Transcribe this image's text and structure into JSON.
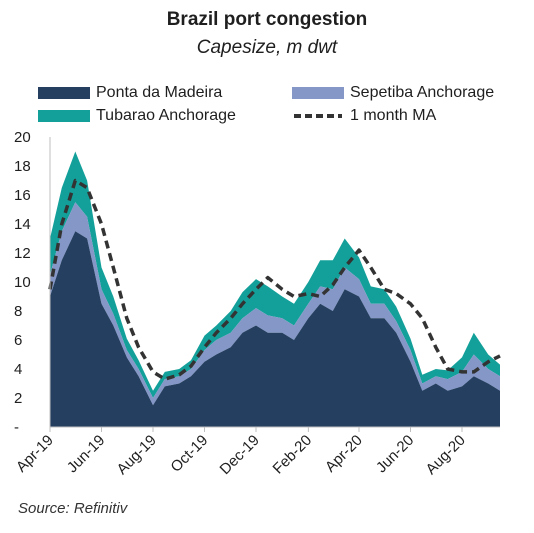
{
  "chart_data": {
    "type": "area",
    "title": "Brazil port congestion",
    "subtitle": "Capesize, m dwt",
    "source": "Source: Refinitiv",
    "xlabel": "",
    "ylabel": "",
    "ylim": [
      0,
      20
    ],
    "yticks": [
      "-",
      "2",
      "4",
      "6",
      "8",
      "10",
      "12",
      "14",
      "16",
      "18",
      "20"
    ],
    "xticks": [
      "Apr-19",
      "Jun-19",
      "Aug-19",
      "Oct-19",
      "Dec-19",
      "Feb-20",
      "Apr-20",
      "Jun-20",
      "Aug-20"
    ],
    "x": [
      "2019-04-01",
      "2019-04-15",
      "2019-05-01",
      "2019-05-15",
      "2019-06-01",
      "2019-06-15",
      "2019-07-01",
      "2019-07-15",
      "2019-08-01",
      "2019-08-15",
      "2019-09-01",
      "2019-09-15",
      "2019-10-01",
      "2019-10-15",
      "2019-11-01",
      "2019-11-15",
      "2019-12-01",
      "2019-12-15",
      "2020-01-01",
      "2020-01-15",
      "2020-02-01",
      "2020-02-15",
      "2020-03-01",
      "2020-03-15",
      "2020-04-01",
      "2020-04-15",
      "2020-05-01",
      "2020-05-15",
      "2020-06-01",
      "2020-06-15",
      "2020-07-01",
      "2020-07-15",
      "2020-08-01",
      "2020-08-15",
      "2020-09-01",
      "2020-09-15"
    ],
    "series": [
      {
        "name": "Ponta da Madeira",
        "color": "#243f60",
        "values": [
          9.0,
          11.5,
          13.5,
          13.0,
          8.5,
          7.0,
          4.8,
          3.5,
          1.5,
          2.8,
          3.0,
          3.5,
          4.5,
          5.0,
          5.5,
          6.5,
          7.0,
          6.5,
          6.5,
          6.0,
          7.5,
          8.5,
          8.0,
          9.5,
          9.0,
          7.5,
          7.5,
          6.5,
          4.5,
          2.5,
          3.0,
          2.5,
          2.8,
          3.5,
          3.0,
          2.5
        ]
      },
      {
        "name": "Sepetiba Anchorage",
        "color": "#8497c7",
        "values": [
          1.5,
          2.0,
          2.0,
          1.5,
          1.0,
          0.8,
          0.5,
          0.5,
          0.5,
          0.5,
          0.5,
          0.5,
          0.8,
          1.0,
          1.0,
          1.0,
          1.2,
          1.2,
          1.0,
          1.0,
          1.0,
          1.2,
          1.5,
          1.5,
          1.2,
          1.0,
          1.0,
          0.8,
          0.8,
          0.5,
          0.5,
          0.8,
          1.0,
          1.5,
          1.0,
          1.0
        ]
      },
      {
        "name": "Tubarao Anchorage",
        "color": "#14a09a",
        "values": [
          2.5,
          3.0,
          3.5,
          2.5,
          1.5,
          1.2,
          0.8,
          0.6,
          0.5,
          0.5,
          0.5,
          0.6,
          1.0,
          1.0,
          1.5,
          1.8,
          2.0,
          2.0,
          1.5,
          1.5,
          1.5,
          1.8,
          2.0,
          2.0,
          1.5,
          1.2,
          1.0,
          1.0,
          0.8,
          0.6,
          0.5,
          0.6,
          1.0,
          1.5,
          1.0,
          0.8
        ]
      }
    ],
    "ma": {
      "name": "1 month MA",
      "color": "#333333",
      "values": [
        9.5,
        14.0,
        17.0,
        16.5,
        14.0,
        11.0,
        7.5,
        5.5,
        3.8,
        3.3,
        3.6,
        4.2,
        5.5,
        6.5,
        7.5,
        8.5,
        9.5,
        10.3,
        9.5,
        9.0,
        9.2,
        9.0,
        9.8,
        11.0,
        12.2,
        11.0,
        9.5,
        9.2,
        8.5,
        7.5,
        5.5,
        4.0,
        3.8,
        3.8,
        4.5,
        4.9
      ]
    },
    "legend": "top"
  }
}
